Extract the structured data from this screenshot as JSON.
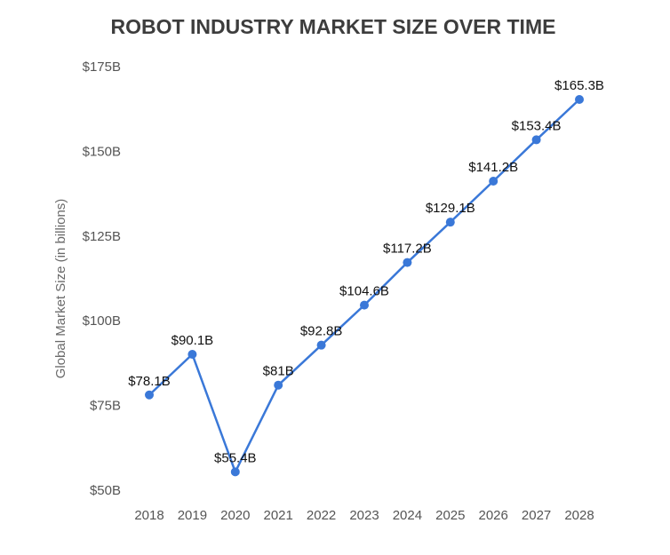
{
  "chart_data": {
    "type": "line",
    "title": "ROBOT INDUSTRY MARKET SIZE OVER TIME",
    "xlabel": "",
    "ylabel": "Global Market Size (in billions)",
    "categories": [
      "2018",
      "2019",
      "2020",
      "2021",
      "2022",
      "2023",
      "2024",
      "2025",
      "2026",
      "2027",
      "2028"
    ],
    "series": [
      {
        "values": [
          78.1,
          90.1,
          55.4,
          81,
          92.8,
          104.6,
          117.2,
          129.1,
          141.2,
          153.4,
          165.3
        ],
        "labels": [
          "$78.1B",
          "$90.1B",
          "$55.4B",
          "$81B",
          "$92.8B",
          "$104.6B",
          "$117.2B",
          "$129.1B",
          "$141.2B",
          "$153.4B",
          "$165.3B"
        ],
        "color": "#3a78d8"
      }
    ],
    "ylim": [
      50,
      175
    ],
    "yticks": [
      50,
      75,
      100,
      125,
      150,
      175
    ],
    "ytick_labels": [
      "$50B",
      "$75B",
      "$100B",
      "$125B",
      "$150B",
      "$175B"
    ],
    "grid": false,
    "legend": "none"
  }
}
